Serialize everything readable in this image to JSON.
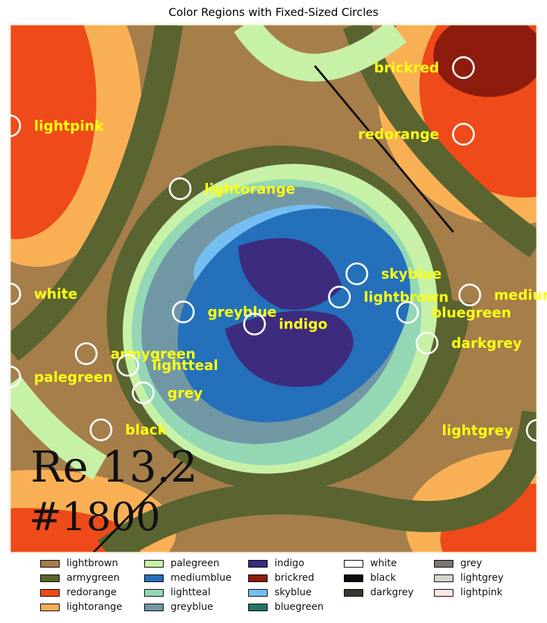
{
  "chart_data": {
    "type": "image_annotation",
    "title": "Color Regions with Fixed-Sized Circles",
    "image_text": {
      "line1": "Re 13.2",
      "line2": "#1800"
    },
    "colors": {
      "lightbrown": "#a57e4a",
      "armygreen": "#596431",
      "redorange": "#ef4a19",
      "lightorange": "#f9b055",
      "palegreen": "#c7f1a7",
      "mediumblue": "#2470bb",
      "lightteal": "#94d7b5",
      "greyblue": "#7197a5",
      "indigo": "#3d2b7e",
      "brickred": "#8d1c0e",
      "skyblue": "#74bef2",
      "bluegreen": "#227568",
      "white": "#ffffff",
      "black": "#0c0e07",
      "darkgrey": "#35372f",
      "grey": "#7a7772",
      "lightgrey": "#d5d6cc",
      "lightpink": "#ffe7e5"
    },
    "legend": [
      "lightbrown",
      "armygreen",
      "redorange",
      "lightorange",
      "palegreen",
      "mediumblue",
      "lightteal",
      "greyblue",
      "indigo",
      "brickred",
      "skyblue",
      "bluegreen",
      "white",
      "black",
      "darkgrey",
      "grey",
      "lightgrey",
      "lightpink"
    ],
    "annotations": [
      {
        "label": "brickred",
        "cx": 0.86,
        "cy": 0.082
      },
      {
        "label": "lightpink",
        "cx": 0.0,
        "cy": 0.192
      },
      {
        "label": "redorange",
        "cx": 0.86,
        "cy": 0.208
      },
      {
        "label": "lightorange",
        "cx": 0.323,
        "cy": 0.311
      },
      {
        "label": "skyblue",
        "cx": 0.658,
        "cy": 0.472
      },
      {
        "label": "white",
        "cx": 0.0,
        "cy": 0.51
      },
      {
        "label": "lightbrown",
        "cx": 0.625,
        "cy": 0.516
      },
      {
        "label": "mediumblue",
        "cx": 0.872,
        "cy": 0.512
      },
      {
        "label": "bluegreen",
        "cx": 0.754,
        "cy": 0.545
      },
      {
        "label": "greyblue",
        "cx": 0.329,
        "cy": 0.544
      },
      {
        "label": "indigo",
        "cx": 0.464,
        "cy": 0.567
      },
      {
        "label": "darkgrey",
        "cx": 0.791,
        "cy": 0.603
      },
      {
        "label": "armygreen",
        "cx": 0.145,
        "cy": 0.623
      },
      {
        "label": "lightteal",
        "cx": 0.224,
        "cy": 0.645
      },
      {
        "label": "palegreen",
        "cx": 0.0,
        "cy": 0.667
      },
      {
        "label": "grey",
        "cx": 0.253,
        "cy": 0.697
      },
      {
        "label": "black",
        "cx": 0.173,
        "cy": 0.767
      },
      {
        "label": "lightgrey",
        "cx": 1.0,
        "cy": 0.768
      }
    ]
  }
}
